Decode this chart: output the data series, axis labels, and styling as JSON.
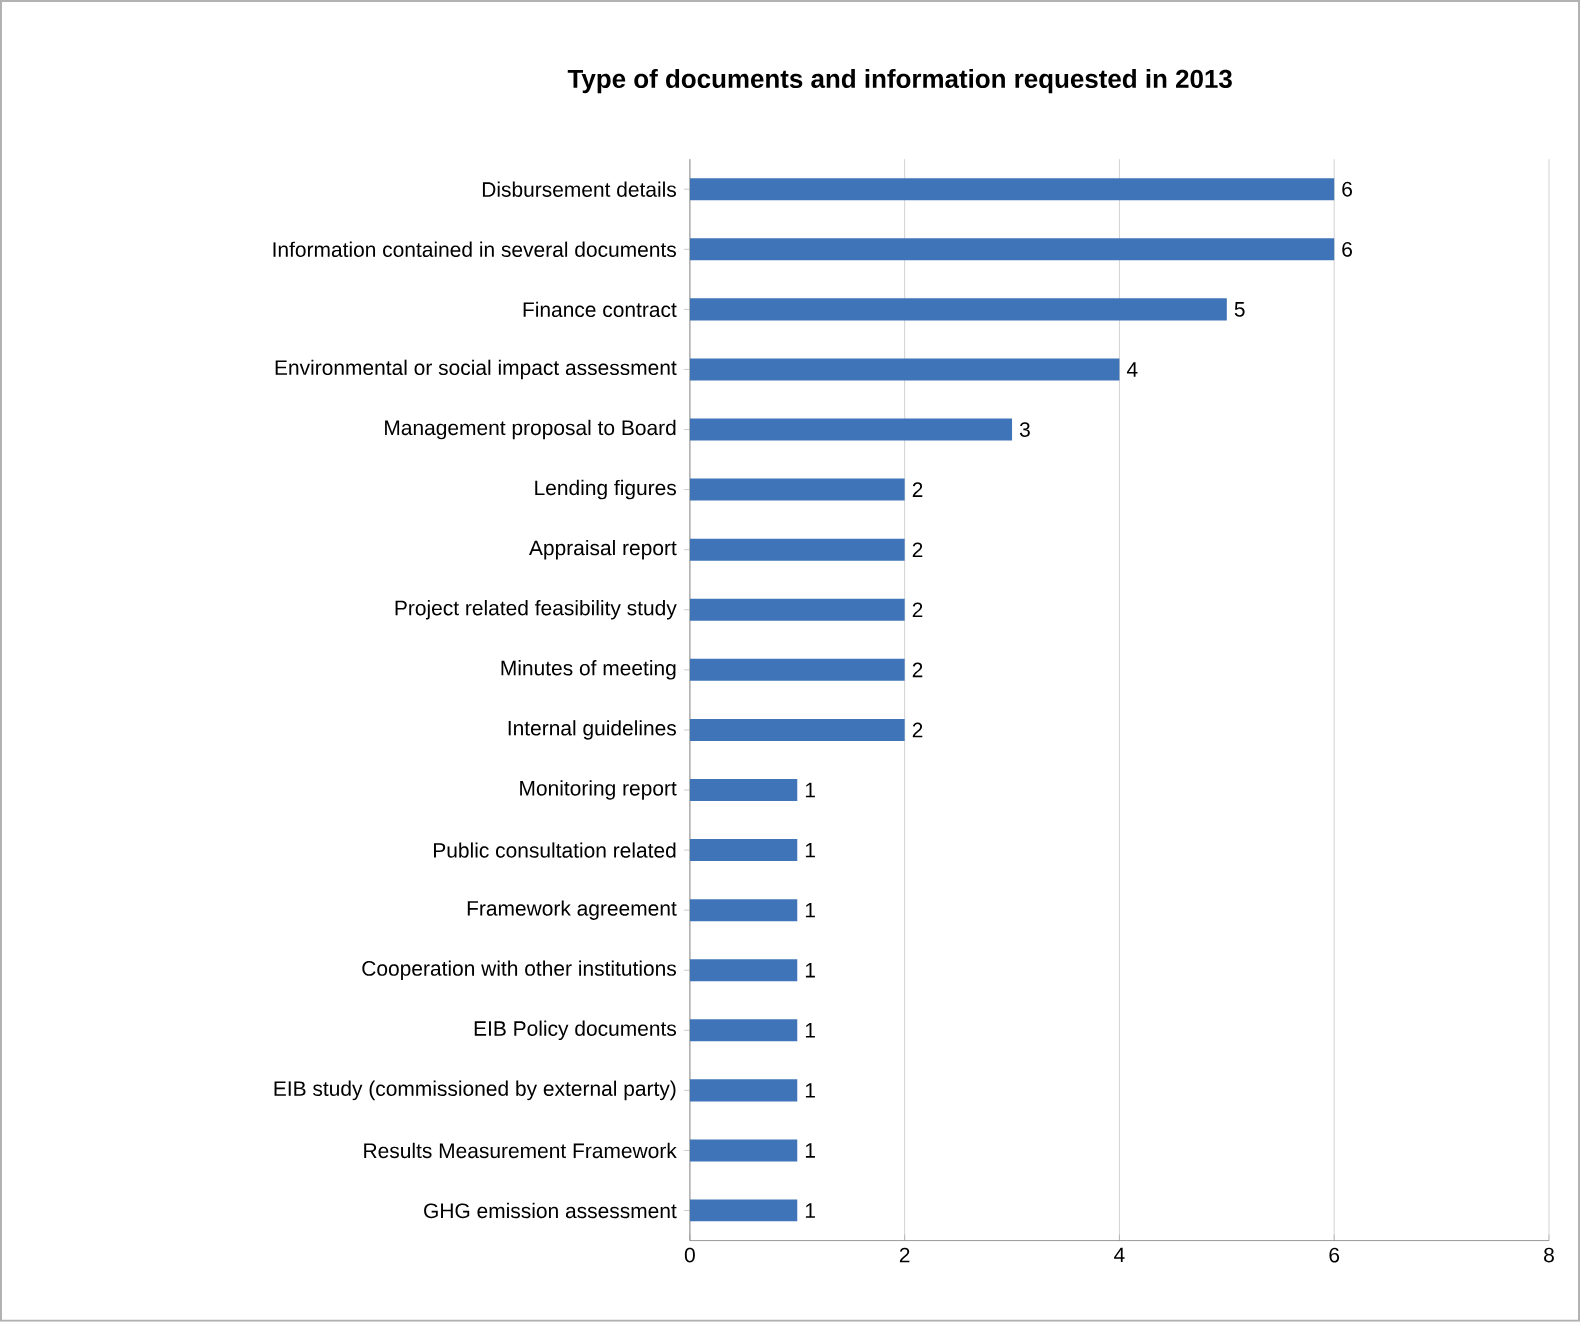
{
  "chart_data": {
    "type": "bar",
    "orientation": "horizontal",
    "title": "Type of documents and information requested in 2013",
    "categories": [
      "Disbursement details",
      "Information contained in several documents",
      "Finance contract",
      "Environmental or social impact assessment",
      "Management proposal to Board",
      "Lending figures",
      "Appraisal report",
      "Project related feasibility study",
      "Minutes of meeting",
      "Internal guidelines",
      "Monitoring report",
      "Public consultation related",
      "Framework agreement",
      "Cooperation with other institutions",
      "EIB Policy documents",
      "EIB study (commissioned by external party)",
      "Results Measurement Framework",
      "GHG emission assessment"
    ],
    "values": [
      6,
      6,
      5,
      4,
      3,
      2,
      2,
      2,
      2,
      2,
      1,
      1,
      1,
      1,
      1,
      1,
      1,
      1
    ],
    "color": "#3f74b8",
    "xlim": [
      0,
      8
    ],
    "xticks": [
      0,
      2,
      4,
      6,
      8
    ],
    "grid": "x",
    "data_labels": true
  }
}
